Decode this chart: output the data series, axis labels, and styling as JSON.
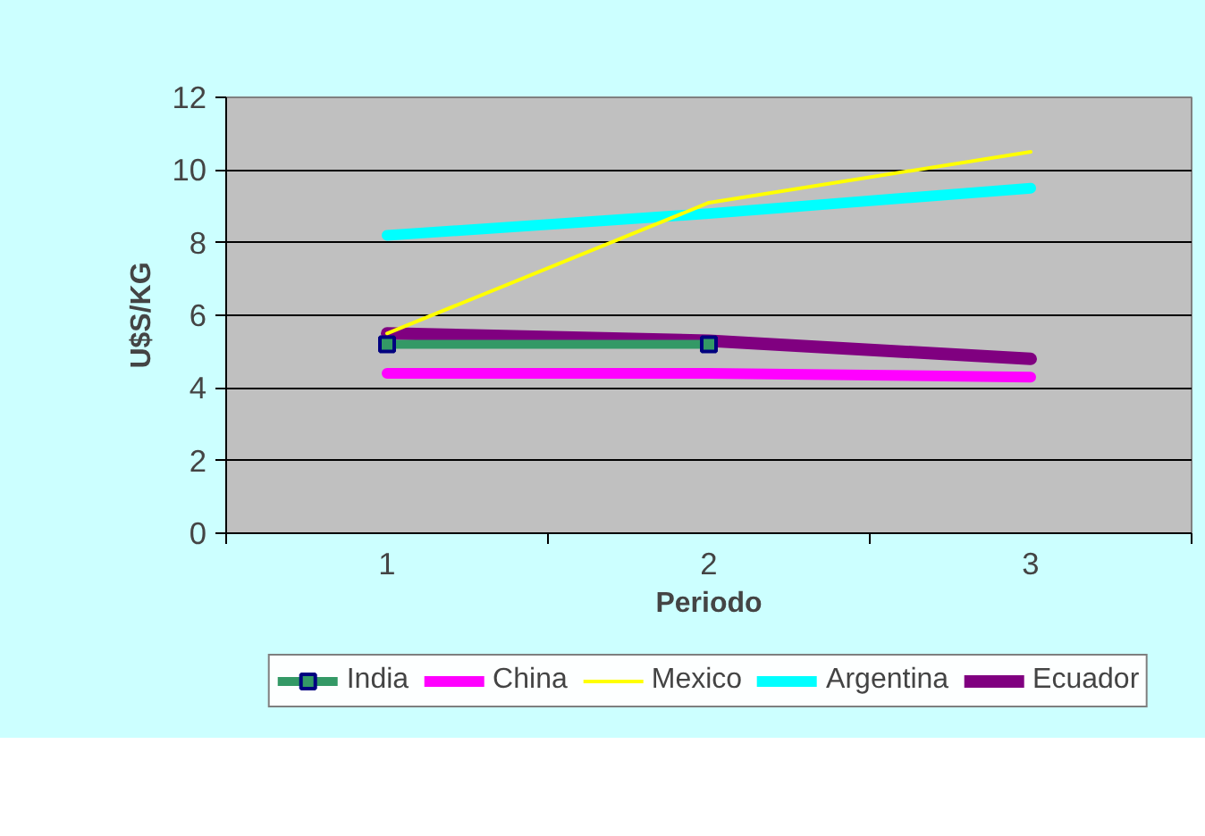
{
  "chart_data": {
    "type": "line",
    "xlabel": "Periodo",
    "ylabel": "U$S/KG",
    "categories": [
      "1",
      "2",
      "3"
    ],
    "series": [
      {
        "name": "India",
        "color": "#339966",
        "values": [
          5.2,
          5.2,
          null
        ],
        "marker": "square"
      },
      {
        "name": "China",
        "color": "#ff00ff",
        "values": [
          4.4,
          4.4,
          4.3
        ]
      },
      {
        "name": "Mexico",
        "color": "#ffff00",
        "values": [
          5.5,
          9.1,
          10.5
        ]
      },
      {
        "name": "Argentina",
        "color": "#00ffff",
        "values": [
          8.2,
          8.8,
          9.5
        ]
      },
      {
        "name": "Ecuador",
        "color": "#800080",
        "values": [
          5.5,
          5.3,
          4.8
        ]
      }
    ],
    "ylim": [
      0,
      12
    ],
    "yticks": [
      0,
      2,
      4,
      6,
      8,
      10,
      12
    ],
    "grid": "y",
    "legend": "bottom",
    "line_style": "solid"
  }
}
